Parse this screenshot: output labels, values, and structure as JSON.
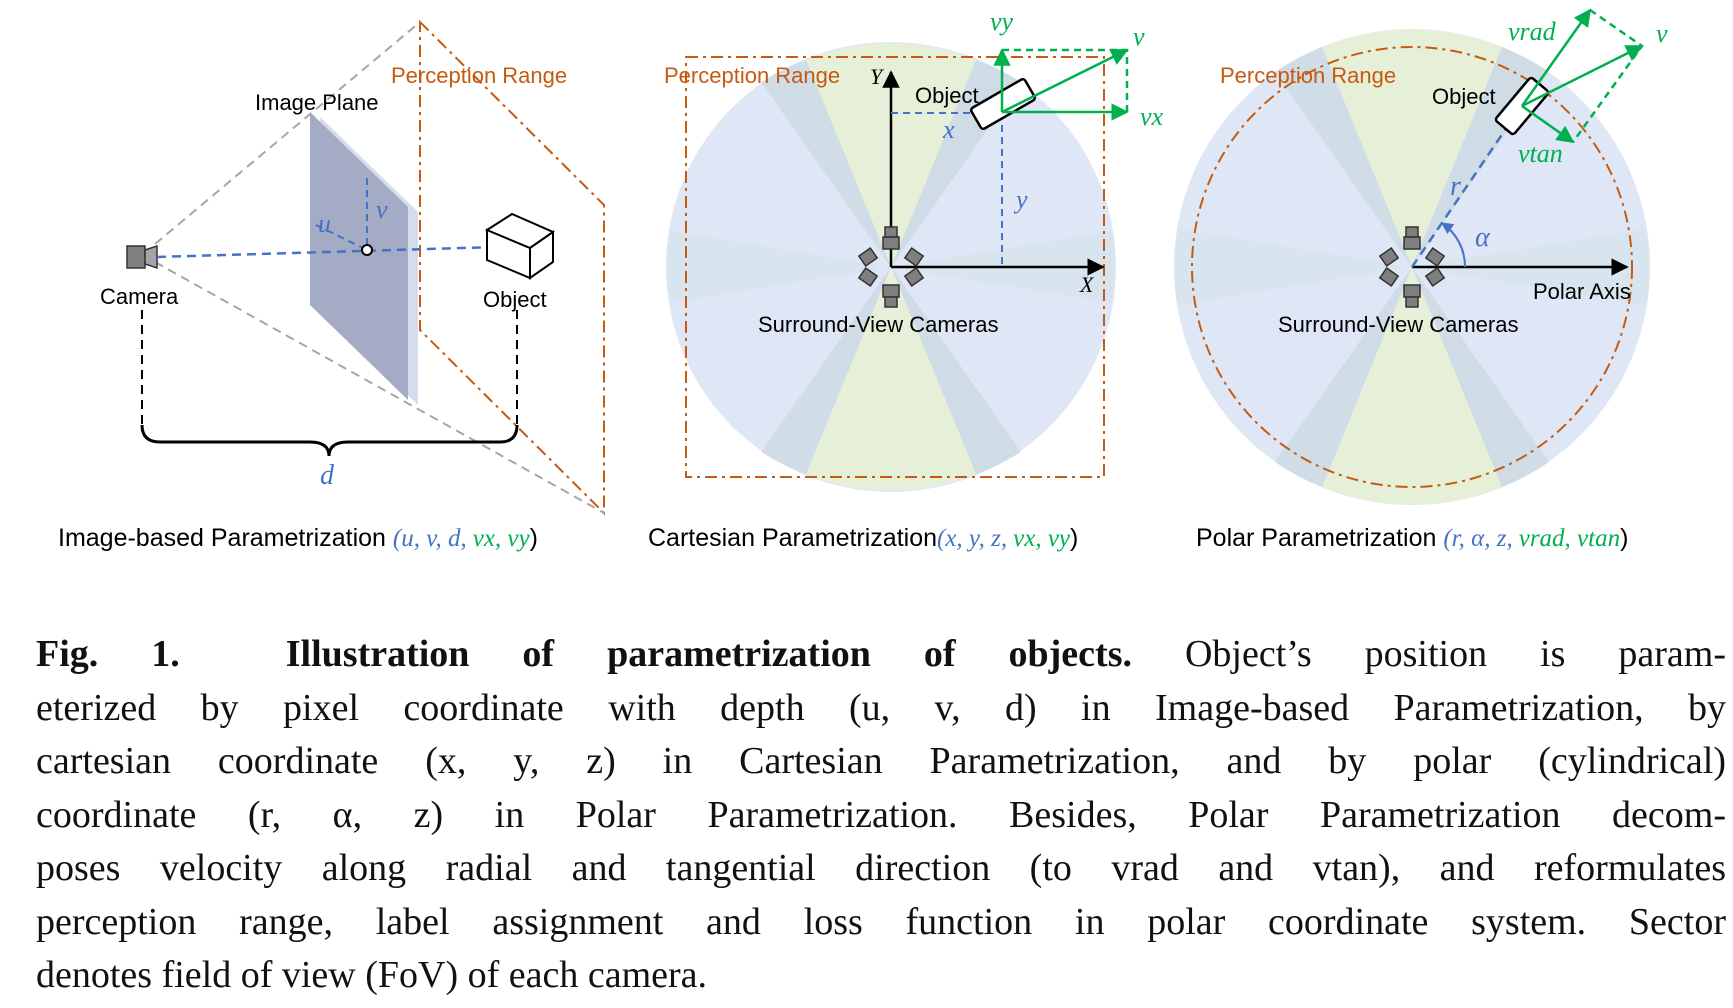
{
  "panel_image": {
    "image_plane_label": "Image Plane",
    "perception_range_label": "Perception Range",
    "camera_label": "Camera",
    "object_label": "Object",
    "u_label": "u",
    "v_label": "v",
    "d_label": "d",
    "title_text": "Image-based Parametrization ",
    "title_params_blue": "(u, v, d,",
    "title_params_green": "vx, vy",
    "title_close": ")"
  },
  "panel_cartesian": {
    "perception_range_label": "Perception Range",
    "object_label": "Object",
    "axis_x_label": "X",
    "axis_y_label": "Y",
    "x_label": "x",
    "y_label": "y",
    "vx_label": "vx",
    "vy_label": "vy",
    "v_label": "v",
    "cameras_label": "Surround-View Cameras",
    "title_text": "Cartesian Parametrization",
    "title_params_blue": "(x, y, z,",
    "title_params_green": "vx, vy",
    "title_close": ")"
  },
  "panel_polar": {
    "perception_range_label": "Perception Range",
    "object_label": "Object",
    "r_label": "r",
    "alpha_label": "α",
    "vrad_label": "vrad",
    "vtan_label": "vtan",
    "v_label": "v",
    "polar_axis_label": "Polar Axis",
    "cameras_label": "Surround-View Cameras",
    "title_text": "Polar Parametrization ",
    "title_params_blue": "(r, α, z,",
    "title_params_green": "vrad, vtan",
    "title_close": ")"
  },
  "caption": {
    "fig_label": "Fig. 1.",
    "fig_title": "Illustration of parametrization of objects.",
    "line1_rest": "Object’s position is param-",
    "line2": "eterized by pixel coordinate with depth (u, v, d) in Image-based Parametrization, by",
    "line3": "cartesian coordinate (x, y, z) in Cartesian Parametrization, and by polar (cylindrical)",
    "line4": "coordinate (r, α, z) in Polar Parametrization. Besides, Polar Parametrization decom-",
    "line5": "poses velocity along radial and tangential direction (to vrad and vtan), and reformulates",
    "line6": "perception range, label assignment and loss function in polar coordinate system. Sector",
    "line7": "denotes field of view (FoV) of each camera."
  },
  "colors": {
    "orange": "#c55a11",
    "blue": "#4472c4",
    "green": "#00b050",
    "gray_dash": "#a6a6a6",
    "fov_blue": "#dfe6f5",
    "fov_green": "#e6f0d8",
    "plane": "#a3acc4"
  }
}
